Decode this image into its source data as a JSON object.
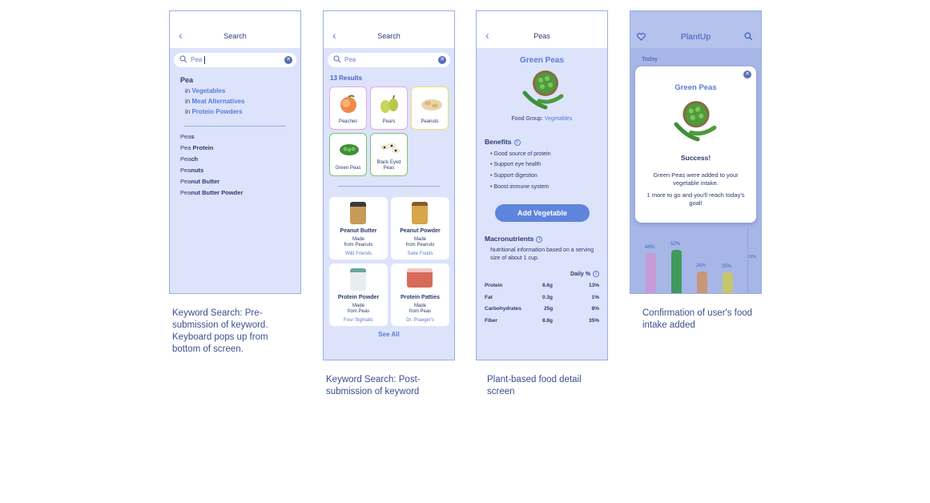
{
  "screen1": {
    "back_icon": "chevron-left-icon",
    "title": "Search",
    "search_value": "Pea",
    "primary": "Pea",
    "categories": [
      {
        "prefix": "in",
        "name": "Vegetables"
      },
      {
        "prefix": "in",
        "name": "Meat Alternatives"
      },
      {
        "prefix": "in",
        "name": "Protein Powders"
      }
    ],
    "suggestions": [
      {
        "base": "Pea",
        "rest": "s"
      },
      {
        "base": "Pea",
        "rest": " Protein"
      },
      {
        "base": "Pea",
        "rest": "ch"
      },
      {
        "base": "Pea",
        "rest": "nuts"
      },
      {
        "base": "Pea",
        "rest": "nut Butter"
      },
      {
        "base": "Pea",
        "rest": "nut Butter Powder"
      }
    ],
    "caption": "Keyword Search: Pre-submission of keyword. Keyboard pops up from bottom of screen."
  },
  "screen2": {
    "title": "Search",
    "search_value": "Pea",
    "results_count": "13 Results",
    "tiles": [
      {
        "label": "Peaches",
        "border": "#e8a6e6"
      },
      {
        "label": "Pears",
        "border": "#e8a6e6"
      },
      {
        "label": "Peanuts",
        "border": "#e7e07a"
      },
      {
        "label": "Green Peas",
        "border": "#7cc46f"
      },
      {
        "label": "Black Eyed Peas",
        "border": "#7cc46f"
      }
    ],
    "products": [
      {
        "name": "Peanut Butter",
        "made": "Made",
        "from": "from Peanuts",
        "brand": "Wild Friends"
      },
      {
        "name": "Peanut Powder",
        "made": "Made",
        "from": "from Peanuts",
        "brand": "Siete Foods"
      },
      {
        "name": "Protein Powder",
        "made": "Made",
        "from": "from Peas",
        "brand": "Four Sigmatic"
      },
      {
        "name": "Protein Patties",
        "made": "Made",
        "from": "from Peas",
        "brand": "Dr. Praeger's"
      }
    ],
    "see_all": "See All",
    "caption": "Keyword Search: Post-submission of keyword"
  },
  "screen3": {
    "title": "Peas",
    "food_name": "Green Peas",
    "food_group_label": "Food Group:",
    "food_group": "Vegetables",
    "benefits_title": "Benefits",
    "benefits": [
      "Good source of protein",
      "Support eye health",
      "Support digestion",
      "Boost immune system"
    ],
    "add_button": "Add Vegetable",
    "macro_title": "Macronutrients",
    "macro_desc": "Nutritional information based on a serving size of about 1 cup.",
    "daily_label": "Daily %",
    "macros": [
      {
        "name": "Protein",
        "amount": "8.6g",
        "daily": "13%"
      },
      {
        "name": "Fat",
        "amount": "0.3g",
        "daily": "1%"
      },
      {
        "name": "Carbohydrates",
        "amount": "25g",
        "daily": "8%"
      },
      {
        "name": "Fiber",
        "amount": "8.8g",
        "daily": "35%"
      }
    ],
    "caption": "Plant-based food detail screen"
  },
  "screen4": {
    "brand": "PlantUp",
    "today": "Today",
    "modal_title": "Green Peas",
    "success": "Success!",
    "message1": "Green Peas were added to your vegetable intake.",
    "message2": "1 more to go and you'll reach today's goal!",
    "bars": [
      {
        "label": "48%",
        "value": 48,
        "color": "#c79ad8"
      },
      {
        "label": "52%",
        "value": 52,
        "color": "#3f9a5c"
      },
      {
        "label": "26%",
        "value": 26,
        "color": "#c9967a"
      },
      {
        "label": "25%",
        "value": 25,
        "color": "#c6c66a"
      }
    ],
    "goal_label": "10%",
    "caption": "Confirmation of user's food intake added"
  }
}
